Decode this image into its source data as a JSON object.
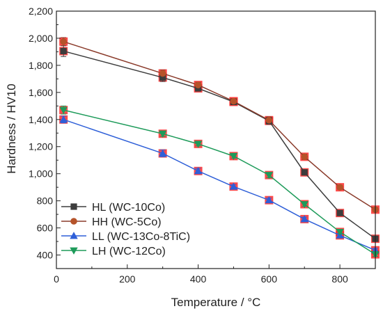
{
  "chart_data": {
    "type": "line",
    "title": "",
    "xlabel": "Temperature / °C",
    "ylabel": "Hardness / HV10",
    "xlim": [
      0,
      900
    ],
    "ylim": [
      300,
      2200
    ],
    "x_ticks": [
      0,
      200,
      400,
      600,
      800
    ],
    "x_tick_labels": [
      "0",
      "200",
      "400",
      "600",
      "800"
    ],
    "y_ticks": [
      400,
      600,
      800,
      1000,
      1200,
      1400,
      1600,
      1800,
      2000,
      2200
    ],
    "y_tick_labels": [
      "400",
      "600",
      "800",
      "1,000",
      "1,200",
      "1,400",
      "1,600",
      "1,800",
      "2,000",
      "2,200"
    ],
    "grid": false,
    "legend_position": "bottom-left",
    "series": [
      {
        "name": "HL (WC-10Co)",
        "color": "#3d3d3d",
        "marker": "square",
        "x": [
          20,
          300,
          400,
          500,
          600,
          700,
          800,
          900
        ],
        "y": [
          1905,
          1710,
          1630,
          1530,
          1390,
          1010,
          710,
          520
        ],
        "err": [
          40,
          30,
          20,
          20,
          25,
          15,
          15,
          15
        ]
      },
      {
        "name": "HH (WC-5Co)",
        "color": "#b5532a",
        "line_color": "#8a3a2a",
        "marker": "circle",
        "x": [
          20,
          300,
          400,
          500,
          600,
          700,
          800,
          900
        ],
        "y": [
          1975,
          1740,
          1655,
          1535,
          1395,
          1125,
          900,
          735
        ],
        "err": [
          30,
          25,
          20,
          20,
          25,
          20,
          15,
          15
        ]
      },
      {
        "name": "LL (WC-13Co-8TiC)",
        "color": "#2e5fd8",
        "marker": "triangle-up",
        "x": [
          20,
          300,
          400,
          500,
          600,
          700,
          800,
          900
        ],
        "y": [
          1400,
          1150,
          1020,
          905,
          805,
          665,
          545,
          435
        ],
        "err": [
          25,
          25,
          20,
          15,
          15,
          15,
          15,
          15
        ]
      },
      {
        "name": "LH (WC-12Co)",
        "color": "#1e9b5a",
        "marker": "triangle-down",
        "x": [
          20,
          300,
          400,
          500,
          600,
          700,
          800,
          900
        ],
        "y": [
          1470,
          1295,
          1220,
          1130,
          990,
          775,
          570,
          405
        ],
        "err": [
          30,
          20,
          15,
          15,
          20,
          15,
          15,
          15
        ]
      }
    ]
  }
}
